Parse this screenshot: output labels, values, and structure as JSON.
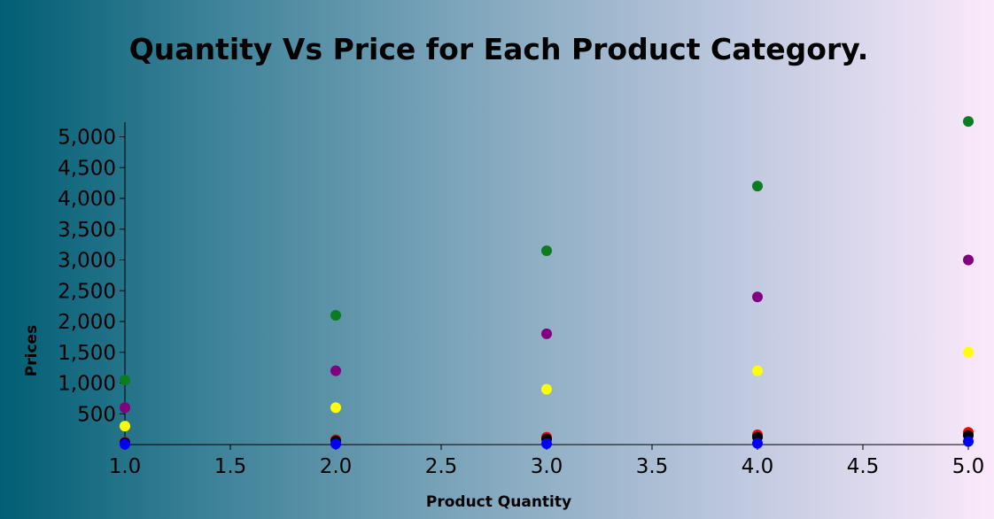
{
  "chart_data": {
    "type": "scatter",
    "title": "Quantity Vs Price for Each Product Category.",
    "xlabel": "Product Quantity",
    "ylabel": "Prices",
    "xlim": [
      1.0,
      5.0
    ],
    "ylim": [
      0,
      5200
    ],
    "x_ticks": [
      "1.0",
      "1.5",
      "2.0",
      "2.5",
      "3.0",
      "3.5",
      "4.0",
      "4.5",
      "5.0"
    ],
    "y_ticks": [
      "500",
      "1,000",
      "1,500",
      "2,000",
      "2,500",
      "3,000",
      "3,500",
      "4,000",
      "4,500",
      "5,000"
    ],
    "grid": false,
    "legend": false,
    "series": [
      {
        "color": "#0a7d1e",
        "x": [
          1,
          2,
          3,
          4,
          5
        ],
        "y": [
          1050,
          2100,
          3150,
          4200,
          5250
        ]
      },
      {
        "color": "#800080",
        "x": [
          1,
          2,
          3,
          4,
          5
        ],
        "y": [
          600,
          1200,
          1800,
          2400,
          3000
        ]
      },
      {
        "color": "#ffff00",
        "x": [
          1,
          2,
          3,
          4,
          5
        ],
        "y": [
          300,
          600,
          900,
          1200,
          1500
        ]
      },
      {
        "color": "#ff0000",
        "x": [
          1,
          2,
          3,
          4,
          5
        ],
        "y": [
          40,
          80,
          120,
          160,
          200
        ]
      },
      {
        "color": "#000000",
        "x": [
          1,
          2,
          3,
          4,
          5
        ],
        "y": [
          30,
          60,
          90,
          120,
          150
        ]
      },
      {
        "color": "#0000ff",
        "x": [
          1,
          2,
          3,
          4,
          5
        ],
        "y": [
          5,
          10,
          15,
          20,
          50
        ]
      }
    ]
  }
}
